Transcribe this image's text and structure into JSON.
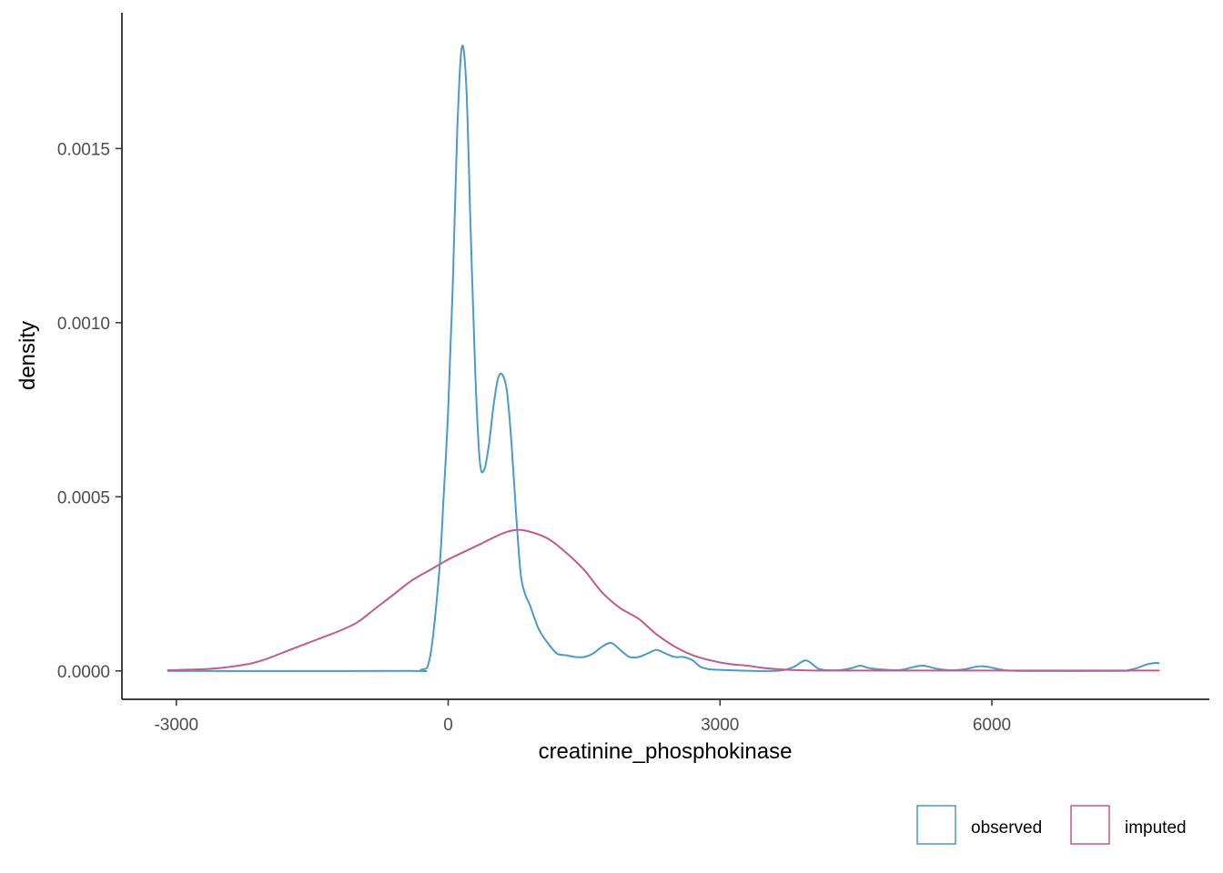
{
  "chart_data": {
    "type": "line",
    "title": "",
    "xlabel": "creatinine_phosphokinase",
    "ylabel": "density",
    "xlim": [
      -3600,
      8400
    ],
    "ylim": [
      -8.15e-05,
      0.00189
    ],
    "x_ticks": [
      -3000,
      0,
      3000,
      6000
    ],
    "x_tick_labels": [
      "-3000",
      "0",
      "3000",
      "6000"
    ],
    "y_ticks": [
      0,
      0.0005,
      0.001,
      0.0015
    ],
    "y_tick_labels": [
      "0.0000",
      "0.0005",
      "0.0010",
      "0.0015"
    ],
    "grid": false,
    "legend": {
      "position": "bottom-right",
      "entries": [
        "observed",
        "imputed"
      ]
    },
    "series": [
      {
        "name": "observed",
        "color": "#4b9ac9",
        "points": [
          [
            -3100,
            0
          ],
          [
            -500,
            0
          ],
          [
            -300,
            3e-06
          ],
          [
            -200,
            4e-05
          ],
          [
            -100,
            0.00028
          ],
          [
            -50,
            0.0005
          ],
          [
            0,
            0.00075
          ],
          [
            50,
            0.0011
          ],
          [
            100,
            0.00155
          ],
          [
            150,
            0.00179
          ],
          [
            200,
            0.00168
          ],
          [
            250,
            0.00125
          ],
          [
            300,
            0.00085
          ],
          [
            350,
            0.0006
          ],
          [
            400,
            0.00058
          ],
          [
            450,
            0.00065
          ],
          [
            500,
            0.00076
          ],
          [
            550,
            0.00084
          ],
          [
            600,
            0.00085
          ],
          [
            650,
            0.0008
          ],
          [
            700,
            0.00065
          ],
          [
            750,
            0.00045
          ],
          [
            800,
            0.00028
          ],
          [
            850,
            0.00022
          ],
          [
            900,
            0.00019
          ],
          [
            1000,
            0.00012
          ],
          [
            1100,
            8e-05
          ],
          [
            1200,
            5e-05
          ],
          [
            1300,
            4.5e-05
          ],
          [
            1400,
            4e-05
          ],
          [
            1500,
            4e-05
          ],
          [
            1600,
            5e-05
          ],
          [
            1700,
            7e-05
          ],
          [
            1800,
            8e-05
          ],
          [
            1900,
            6e-05
          ],
          [
            2000,
            4e-05
          ],
          [
            2100,
            4e-05
          ],
          [
            2200,
            5e-05
          ],
          [
            2300,
            6e-05
          ],
          [
            2400,
            5e-05
          ],
          [
            2500,
            4e-05
          ],
          [
            2600,
            4e-05
          ],
          [
            2700,
            3e-05
          ],
          [
            2800,
            1e-05
          ],
          [
            3000,
            3e-06
          ],
          [
            3600,
            0
          ],
          [
            3800,
            1e-05
          ],
          [
            3950,
            3e-05
          ],
          [
            4100,
            5e-06
          ],
          [
            4300,
            2e-06
          ],
          [
            4450,
            8e-06
          ],
          [
            4550,
            1.5e-05
          ],
          [
            4650,
            8e-06
          ],
          [
            4850,
            3e-06
          ],
          [
            5000,
            3e-06
          ],
          [
            5150,
            1.2e-05
          ],
          [
            5250,
            1.5e-05
          ],
          [
            5400,
            6e-06
          ],
          [
            5550,
            2e-06
          ],
          [
            5700,
            5e-06
          ],
          [
            5850,
            1.3e-05
          ],
          [
            5950,
            1.2e-05
          ],
          [
            6100,
            4e-06
          ],
          [
            6300,
            0
          ],
          [
            7400,
            0
          ],
          [
            7500,
            2e-06
          ],
          [
            7600,
            8e-06
          ],
          [
            7700,
            1.8e-05
          ],
          [
            7800,
            2.3e-05
          ],
          [
            7850,
            2.2e-05
          ]
        ]
      },
      {
        "name": "imputed",
        "color": "#c45a87",
        "points": [
          [
            -3100,
            2e-06
          ],
          [
            -2700,
            5e-06
          ],
          [
            -2500,
            9e-06
          ],
          [
            -2200,
            2e-05
          ],
          [
            -2000,
            3.5e-05
          ],
          [
            -1800,
            5.5e-05
          ],
          [
            -1600,
            7.5e-05
          ],
          [
            -1400,
            9.5e-05
          ],
          [
            -1200,
            0.000115
          ],
          [
            -1000,
            0.00014
          ],
          [
            -800,
            0.00018
          ],
          [
            -600,
            0.00022
          ],
          [
            -400,
            0.00026
          ],
          [
            -200,
            0.00029
          ],
          [
            0,
            0.00032
          ],
          [
            200,
            0.000345
          ],
          [
            400,
            0.00037
          ],
          [
            600,
            0.000395
          ],
          [
            750,
            0.000405
          ],
          [
            900,
            0.0004
          ],
          [
            1100,
            0.00038
          ],
          [
            1300,
            0.00034
          ],
          [
            1500,
            0.00029
          ],
          [
            1700,
            0.000225
          ],
          [
            1900,
            0.00018
          ],
          [
            2100,
            0.00015
          ],
          [
            2300,
            0.000105
          ],
          [
            2500,
            7e-05
          ],
          [
            2700,
            4.5e-05
          ],
          [
            2900,
            3e-05
          ],
          [
            3100,
            2e-05
          ],
          [
            3300,
            1.5e-05
          ],
          [
            3500,
            8e-06
          ],
          [
            3700,
            4e-06
          ],
          [
            3900,
            2e-06
          ],
          [
            4200,
            1e-06
          ],
          [
            5000,
            1e-06
          ],
          [
            7850,
            1e-06
          ]
        ]
      }
    ]
  }
}
